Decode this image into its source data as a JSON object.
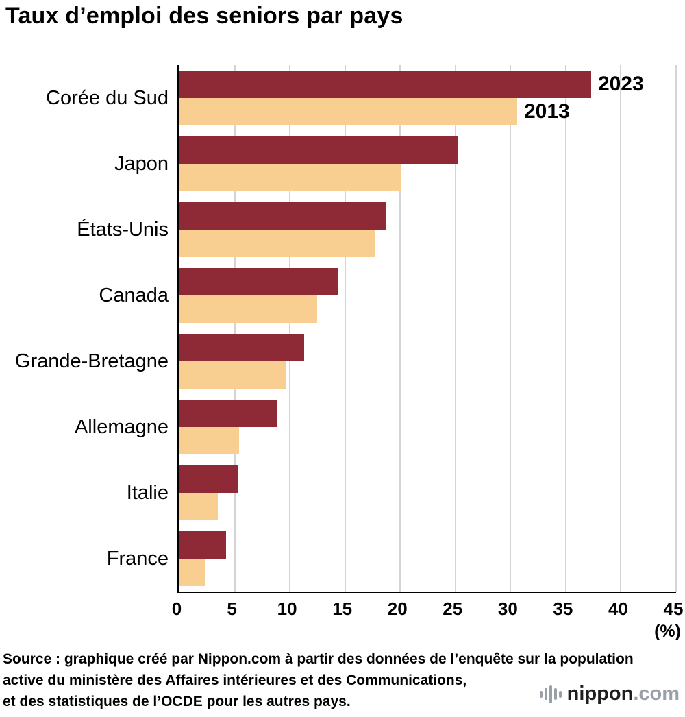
{
  "title": "Taux d’emploi des seniors par pays",
  "chart_data": {
    "type": "bar",
    "orientation": "horizontal",
    "title": "Taux d’emploi des seniors par pays",
    "categories": [
      "Corée du Sud",
      "Japon",
      "États-Unis",
      "Canada",
      "Grande-Bretagne",
      "Allemagne",
      "Italie",
      "France"
    ],
    "series": [
      {
        "name": "2023",
        "color": "#8e2a35",
        "values": [
          37.3,
          25.2,
          18.7,
          14.4,
          11.3,
          8.9,
          5.3,
          4.2
        ]
      },
      {
        "name": "2013",
        "color": "#f8cf90",
        "values": [
          30.6,
          20.1,
          17.7,
          12.5,
          9.7,
          5.4,
          3.5,
          2.3
        ]
      }
    ],
    "xlim": [
      0,
      45
    ],
    "xticks": [
      0,
      5,
      10,
      15,
      20,
      25,
      30,
      35,
      40,
      45
    ],
    "unit_label": "(%)",
    "grid": true,
    "legend_inline": true,
    "legend_position": "next-to-first-bars"
  },
  "source": {
    "lines": [
      "Source : graphique créé par Nippon.com à partir des données de l’enquête sur la population",
      "active du ministère des Affaires intérieures et des Communications,",
      "et des statistiques de l’OCDE pour les autres pays."
    ]
  },
  "logo": {
    "icon": "audio-bars-icon",
    "name": "nippon",
    "suffix": ".com"
  }
}
